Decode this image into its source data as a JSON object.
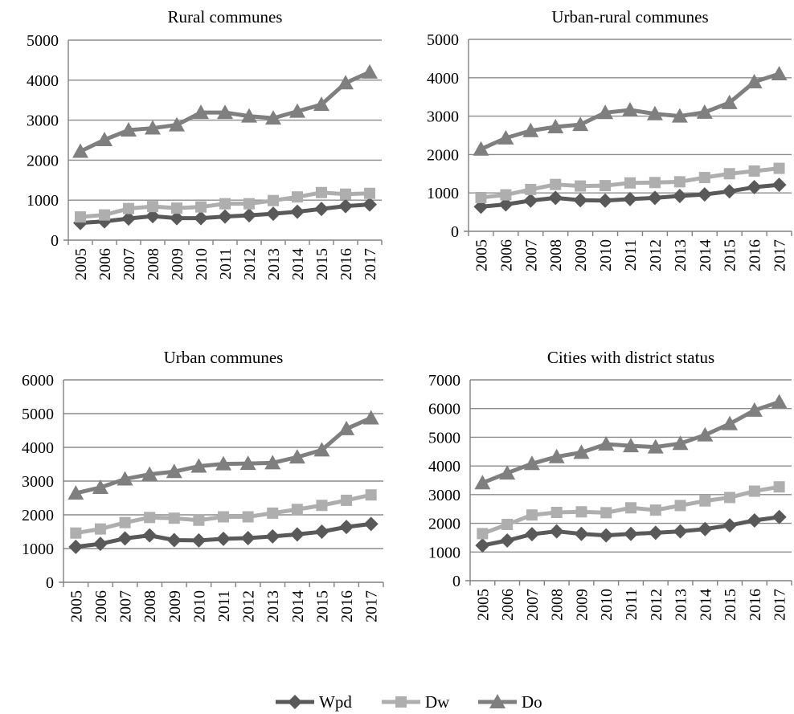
{
  "chart_data": [
    {
      "type": "line",
      "title": "Rural communes",
      "categories": [
        "2005",
        "2006",
        "2007",
        "2008",
        "2009",
        "2010",
        "2011",
        "2012",
        "2013",
        "2014",
        "2015",
        "2016",
        "2017"
      ],
      "ylim": [
        0,
        5000
      ],
      "yticks": [
        0,
        1000,
        2000,
        3000,
        4000,
        5000
      ],
      "grid": true,
      "series": [
        {
          "name": "Wpd",
          "values": [
            430,
            470,
            540,
            600,
            550,
            550,
            590,
            620,
            660,
            710,
            780,
            850,
            890
          ]
        },
        {
          "name": "Dw",
          "values": [
            580,
            630,
            790,
            840,
            800,
            830,
            910,
            910,
            990,
            1080,
            1190,
            1150,
            1170
          ]
        },
        {
          "name": "Do",
          "values": [
            2220,
            2510,
            2750,
            2800,
            2880,
            3190,
            3190,
            3100,
            3050,
            3220,
            3390,
            3930,
            4200
          ]
        }
      ]
    },
    {
      "type": "line",
      "title": "Urban-rural communes",
      "categories": [
        "2005",
        "2006",
        "2007",
        "2008",
        "2009",
        "2010",
        "2011",
        "2012",
        "2013",
        "2014",
        "2015",
        "2016",
        "2017"
      ],
      "ylim": [
        0,
        5000
      ],
      "yticks": [
        0,
        1000,
        2000,
        3000,
        4000,
        5000
      ],
      "grid": true,
      "series": [
        {
          "name": "Wpd",
          "values": [
            640,
            700,
            800,
            870,
            810,
            800,
            840,
            870,
            920,
            960,
            1040,
            1150,
            1210
          ]
        },
        {
          "name": "Dw",
          "values": [
            880,
            950,
            1090,
            1220,
            1180,
            1190,
            1260,
            1270,
            1290,
            1400,
            1500,
            1570,
            1640
          ]
        },
        {
          "name": "Do",
          "values": [
            2140,
            2430,
            2620,
            2720,
            2780,
            3090,
            3160,
            3060,
            3000,
            3100,
            3350,
            3890,
            4100
          ]
        }
      ]
    },
    {
      "type": "line",
      "title": "Urban communes",
      "categories": [
        "2005",
        "2006",
        "2007",
        "2008",
        "2009",
        "2010",
        "2011",
        "2012",
        "2013",
        "2014",
        "2015",
        "2016",
        "2017"
      ],
      "ylim": [
        0,
        6000
      ],
      "yticks": [
        0,
        1000,
        2000,
        3000,
        4000,
        5000,
        6000
      ],
      "grid": true,
      "series": [
        {
          "name": "Wpd",
          "values": [
            1050,
            1140,
            1300,
            1390,
            1250,
            1240,
            1290,
            1310,
            1360,
            1420,
            1500,
            1640,
            1730
          ]
        },
        {
          "name": "Dw",
          "values": [
            1460,
            1580,
            1770,
            1920,
            1900,
            1840,
            1940,
            1940,
            2050,
            2160,
            2280,
            2430,
            2590
          ]
        },
        {
          "name": "Do",
          "values": [
            2640,
            2810,
            3060,
            3200,
            3280,
            3440,
            3510,
            3520,
            3540,
            3710,
            3920,
            4550,
            4870
          ]
        }
      ]
    },
    {
      "type": "line",
      "title": "Cities with district status",
      "categories": [
        "2005",
        "2006",
        "2007",
        "2008",
        "2009",
        "2010",
        "2011",
        "2012",
        "2013",
        "2014",
        "2015",
        "2016",
        "2017"
      ],
      "ylim": [
        0,
        7000
      ],
      "yticks": [
        0,
        1000,
        2000,
        3000,
        4000,
        5000,
        6000,
        7000
      ],
      "grid": true,
      "series": [
        {
          "name": "Wpd",
          "values": [
            1230,
            1400,
            1620,
            1720,
            1630,
            1580,
            1630,
            1670,
            1720,
            1800,
            1930,
            2100,
            2220
          ]
        },
        {
          "name": "Dw",
          "values": [
            1640,
            1960,
            2290,
            2380,
            2400,
            2370,
            2540,
            2460,
            2620,
            2780,
            2900,
            3120,
            3270
          ]
        },
        {
          "name": "Do",
          "values": [
            3410,
            3750,
            4080,
            4320,
            4470,
            4760,
            4700,
            4660,
            4780,
            5080,
            5470,
            5940,
            6230
          ]
        }
      ]
    }
  ],
  "legend": {
    "position": "bottom-center",
    "items": [
      {
        "label": "Wpd",
        "marker": "diamond",
        "color": "#595959"
      },
      {
        "label": "Dw",
        "marker": "square",
        "color": "#aeaeae"
      },
      {
        "label": "Do",
        "marker": "triangle",
        "color": "#7f7f7f"
      }
    ]
  },
  "colors": {
    "Wpd": "#595959",
    "Dw": "#aeaeae",
    "Do": "#7f7f7f",
    "axis": "#808080",
    "grid": "#8c8c8c"
  }
}
